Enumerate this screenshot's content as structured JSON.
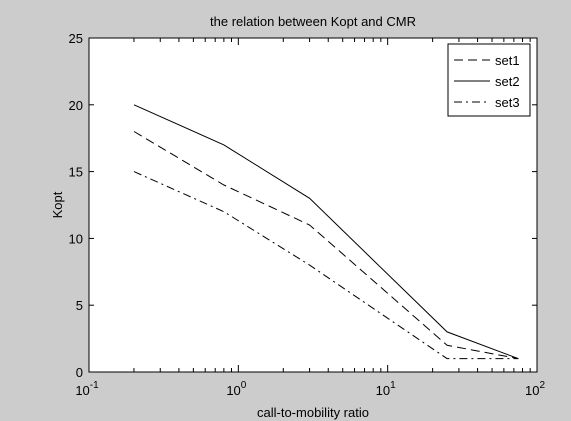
{
  "chart_data": {
    "type": "line",
    "title": "the relation between Kopt and CMR",
    "xlabel": "call-to-mobility ratio",
    "ylabel": "Kopt",
    "xscale": "log",
    "xlim": [
      0.1,
      100
    ],
    "ylim": [
      0,
      25
    ],
    "xticks": [
      0.1,
      1,
      10,
      100
    ],
    "xtick_labels": [
      {
        "base": "10",
        "exp": "-1"
      },
      {
        "base": "10",
        "exp": "0"
      },
      {
        "base": "10",
        "exp": "1"
      },
      {
        "base": "10",
        "exp": "2"
      }
    ],
    "yticks": [
      0,
      5,
      10,
      15,
      20,
      25
    ],
    "ytick_labels": [
      "0",
      "5",
      "10",
      "15",
      "20",
      "25"
    ],
    "grid": false,
    "legend_position": "top-right",
    "series": [
      {
        "name": "set1",
        "linestyle": "dashed",
        "color": "#000000",
        "x": [
          0.2,
          0.8,
          3,
          25,
          75
        ],
        "y": [
          18,
          14,
          11,
          2,
          1
        ]
      },
      {
        "name": "set2",
        "linestyle": "solid",
        "color": "#000000",
        "x": [
          0.2,
          0.8,
          3,
          25,
          75
        ],
        "y": [
          20,
          17,
          13,
          3,
          1
        ]
      },
      {
        "name": "set3",
        "linestyle": "dashdot",
        "color": "#000000",
        "x": [
          0.2,
          0.8,
          3,
          25,
          75
        ],
        "y": [
          15,
          12,
          8,
          1,
          1
        ]
      }
    ]
  }
}
